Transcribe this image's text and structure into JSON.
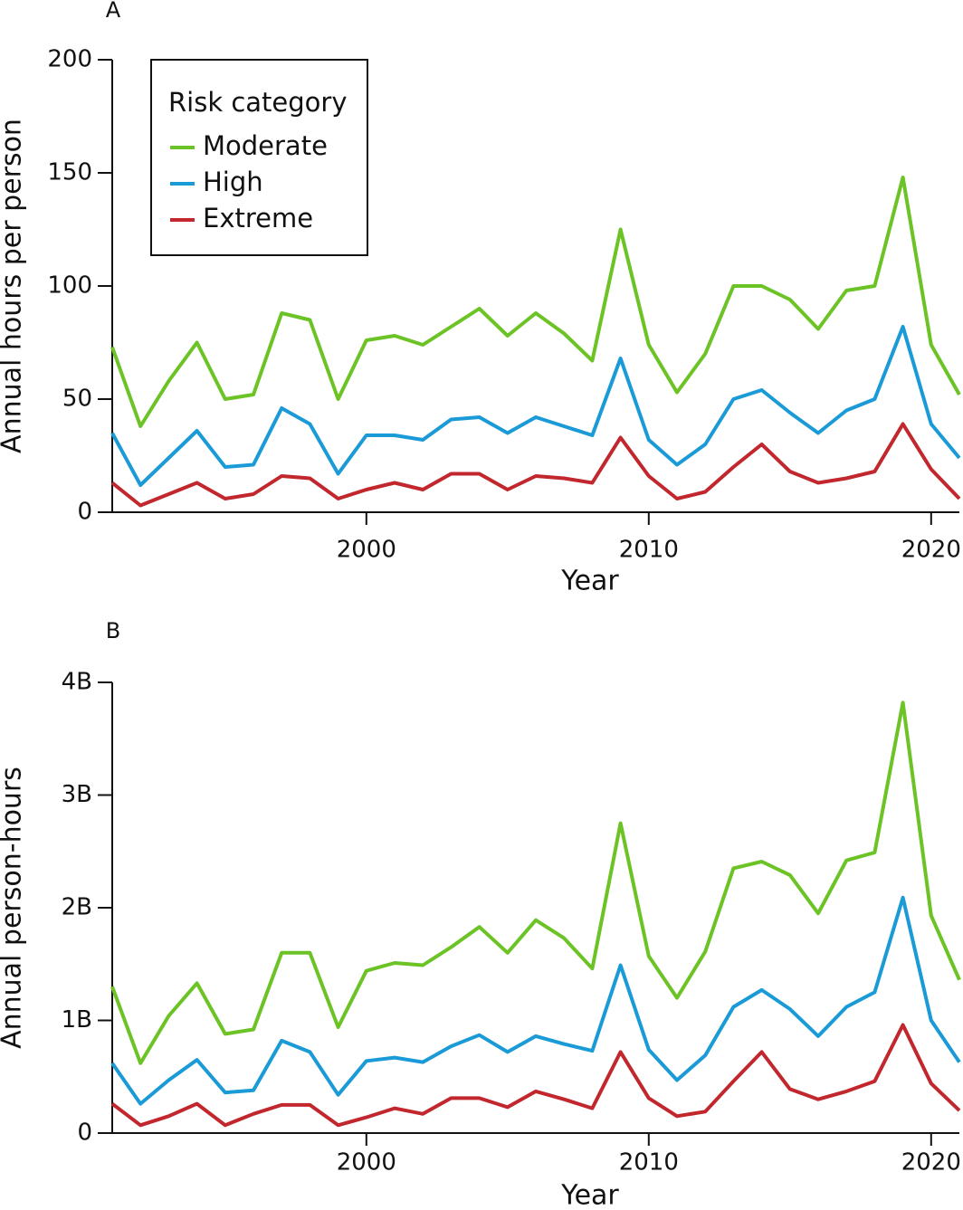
{
  "chart_data": [
    {
      "type": "line",
      "panel_label": "A",
      "x_label": "Year",
      "y_label": "Annual hours per person",
      "legend_title": "Risk category",
      "legend": "upper left",
      "x": [
        1991,
        1992,
        1993,
        1994,
        1995,
        1996,
        1997,
        1998,
        1999,
        2000,
        2001,
        2002,
        2003,
        2004,
        2005,
        2006,
        2007,
        2008,
        2009,
        2010,
        2011,
        2012,
        2013,
        2014,
        2015,
        2016,
        2017,
        2018,
        2019,
        2020,
        2021
      ],
      "xlim": [
        1991,
        2021
      ],
      "xticks": [
        2000,
        2010,
        2020
      ],
      "ylim": [
        0,
        200
      ],
      "yticks": [
        0,
        50,
        100,
        150,
        200
      ],
      "series": [
        {
          "name": "Moderate",
          "color": "#6cc325",
          "values": [
            73,
            38,
            58,
            75,
            50,
            52,
            88,
            85,
            50,
            76,
            78,
            74,
            82,
            90,
            78,
            88,
            79,
            67,
            125,
            74,
            53,
            70,
            100,
            100,
            94,
            81,
            98,
            100,
            148,
            74,
            52
          ]
        },
        {
          "name": "High",
          "color": "#1a9ad6",
          "values": [
            35,
            12,
            24,
            36,
            20,
            21,
            46,
            39,
            17,
            34,
            34,
            32,
            41,
            42,
            35,
            42,
            38,
            34,
            68,
            32,
            21,
            30,
            50,
            54,
            44,
            35,
            45,
            50,
            82,
            39,
            24
          ]
        },
        {
          "name": "Extreme",
          "color": "#c1272d",
          "values": [
            13,
            3,
            8,
            13,
            6,
            8,
            16,
            15,
            6,
            10,
            13,
            10,
            17,
            17,
            10,
            16,
            15,
            13,
            33,
            16,
            6,
            9,
            20,
            30,
            18,
            13,
            15,
            18,
            39,
            19,
            6
          ]
        }
      ]
    },
    {
      "type": "line",
      "panel_label": "B",
      "x_label": "Year",
      "y_label": "Annual person-hours",
      "x": [
        1991,
        1992,
        1993,
        1994,
        1995,
        1996,
        1997,
        1998,
        1999,
        2000,
        2001,
        2002,
        2003,
        2004,
        2005,
        2006,
        2007,
        2008,
        2009,
        2010,
        2011,
        2012,
        2013,
        2014,
        2015,
        2016,
        2017,
        2018,
        2019,
        2020,
        2021
      ],
      "xlim": [
        1991,
        2021
      ],
      "xticks": [
        2000,
        2010,
        2020
      ],
      "ylim": [
        0,
        4000000000
      ],
      "yticks": [
        0,
        {
          "value": 1000000000,
          "label": "1B"
        },
        {
          "value": 2000000000,
          "label": "2B"
        },
        {
          "value": 3000000000,
          "label": "3B"
        },
        {
          "value": 4000000000,
          "label": "4B"
        }
      ],
      "series": [
        {
          "color": "#6cc325",
          "values": [
            1300000000,
            620000000,
            1040000000,
            1330000000,
            880000000,
            920000000,
            1600000000,
            1600000000,
            940000000,
            1440000000,
            1510000000,
            1490000000,
            1650000000,
            1830000000,
            1600000000,
            1890000000,
            1730000000,
            1460000000,
            2750000000,
            1570000000,
            1200000000,
            1610000000,
            2350000000,
            2410000000,
            2290000000,
            1950000000,
            2420000000,
            2490000000,
            3820000000,
            1930000000,
            1360000000
          ]
        },
        {
          "color": "#1a9ad6",
          "values": [
            620000000,
            260000000,
            470000000,
            650000000,
            360000000,
            380000000,
            820000000,
            720000000,
            340000000,
            640000000,
            670000000,
            630000000,
            770000000,
            870000000,
            720000000,
            860000000,
            790000000,
            730000000,
            1490000000,
            740000000,
            470000000,
            690000000,
            1120000000,
            1270000000,
            1100000000,
            860000000,
            1120000000,
            1250000000,
            2090000000,
            1000000000,
            630000000
          ]
        },
        {
          "color": "#c1272d",
          "values": [
            260000000,
            70000000,
            150000000,
            260000000,
            70000000,
            170000000,
            250000000,
            250000000,
            70000000,
            140000000,
            220000000,
            170000000,
            310000000,
            310000000,
            230000000,
            370000000,
            300000000,
            220000000,
            720000000,
            310000000,
            150000000,
            190000000,
            460000000,
            720000000,
            390000000,
            300000000,
            370000000,
            460000000,
            960000000,
            440000000,
            200000000
          ]
        }
      ]
    }
  ]
}
